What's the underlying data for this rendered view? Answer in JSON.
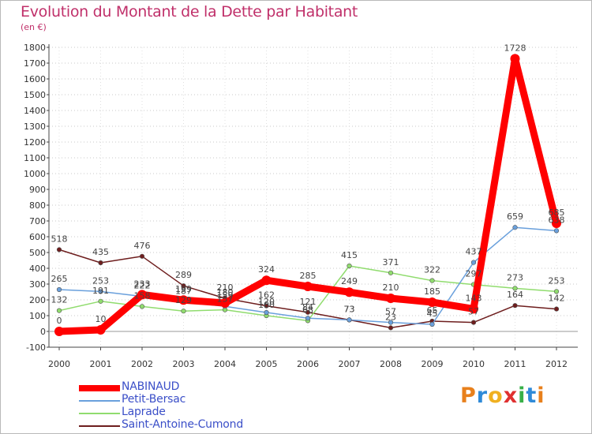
{
  "chart_data": {
    "type": "line",
    "title": "Evolution du Montant de la Dette par Habitant",
    "ylabel": "(en €)",
    "xlabel": "",
    "x": [
      "2000",
      "2001",
      "2002",
      "2003",
      "2004",
      "2005",
      "2006",
      "2007",
      "2008",
      "2009",
      "2010",
      "2011",
      "2012"
    ],
    "ylim": [
      -100,
      1800
    ],
    "yticks": [
      -100,
      0,
      100,
      200,
      300,
      400,
      500,
      600,
      700,
      800,
      900,
      1000,
      1100,
      1200,
      1300,
      1400,
      1500,
      1600,
      1700,
      1800
    ],
    "grid": "dotted-horizontal",
    "legend_placement": "bottom-left",
    "series": [
      {
        "name": "NABINAUD",
        "color": "#ff0000",
        "width": 9,
        "marker": 6,
        "values": [
          0,
          10,
          233,
          199,
          180,
          324,
          285,
          249,
          210,
          185,
          143,
          1728,
          685
        ]
      },
      {
        "name": "Petit-Bersac",
        "color": "#6aa0dc",
        "width": 1.5,
        "marker": 2.8,
        "values": [
          265,
          253,
          222,
          187,
          159,
          120,
          84,
          73,
          57,
          45,
          437,
          659,
          638
        ]
      },
      {
        "name": "Laprade",
        "color": "#90dc6e",
        "width": 1.5,
        "marker": 2.8,
        "values": [
          132,
          191,
          158,
          129,
          137,
          100,
          68,
          415,
          371,
          322,
          297,
          273,
          253
        ]
      },
      {
        "name": "Saint-Antoine-Cumond",
        "color": "#6e1e1e",
        "width": 1.5,
        "marker": 2.8,
        "values": [
          518,
          435,
          476,
          289,
          210,
          162,
          121,
          73,
          23,
          65,
          57,
          164,
          142
        ]
      }
    ]
  },
  "logo": {
    "letters": [
      "P",
      "r",
      "o",
      "x",
      "i",
      "t",
      "i"
    ],
    "colors": [
      "#e8801c",
      "#2e8ad8",
      "#f0b020",
      "#e03030",
      "#38b048",
      "#2e8ad8",
      "#e8801c"
    ]
  }
}
